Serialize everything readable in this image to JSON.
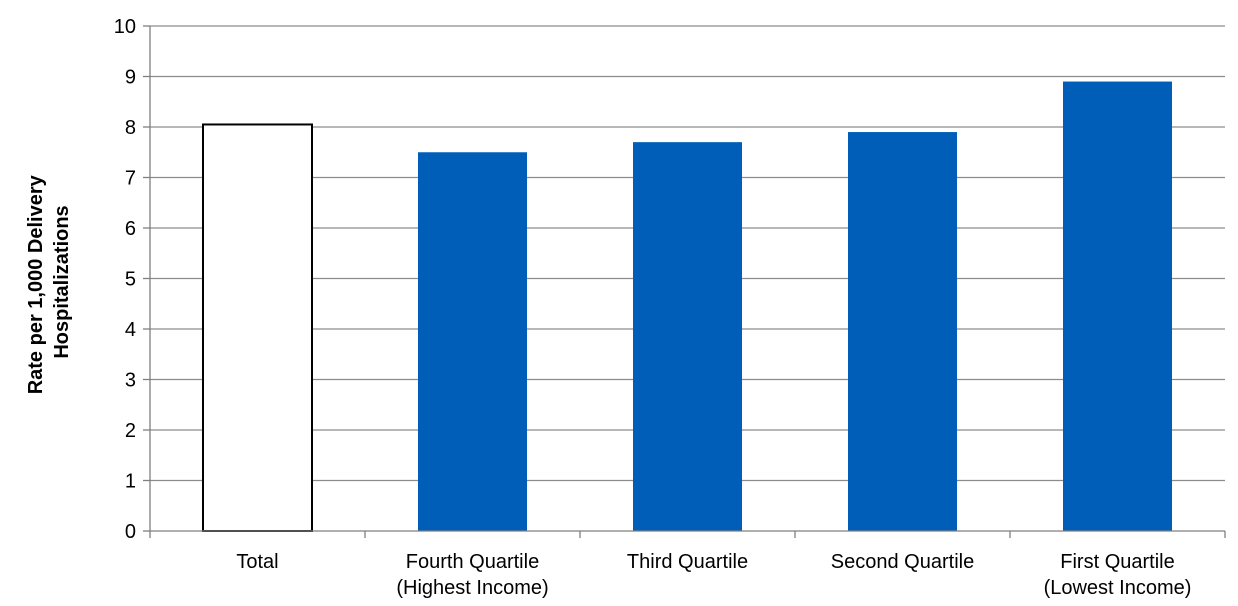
{
  "chart_data": {
    "type": "bar",
    "title": "",
    "xlabel": "",
    "ylabel": [
      "Rate per 1,000 Delivery",
      "Hospitalizations"
    ],
    "ylim": [
      0,
      10
    ],
    "yticks": [
      "0",
      "1",
      "2",
      "3",
      "4",
      "5",
      "6",
      "7",
      "8",
      "9",
      "10"
    ],
    "grid": true,
    "legend": "none",
    "categories": [
      [
        "Total"
      ],
      [
        "Fourth Quartile",
        "(Highest Income)"
      ],
      [
        "Third Quartile"
      ],
      [
        "Second Quartile"
      ],
      [
        "First Quartile",
        "(Lowest Income)"
      ]
    ],
    "values": [
      8.05,
      7.5,
      7.7,
      7.9,
      8.9
    ],
    "bar_styles": [
      "outline",
      "filled",
      "filled",
      "filled",
      "filled"
    ],
    "colors": {
      "bar_fill": "#005EB8",
      "outline_fill": "#FFFFFF",
      "outline_stroke": "#000000",
      "grid": "#8C8C8C",
      "axis": "#7F7F7F"
    }
  }
}
